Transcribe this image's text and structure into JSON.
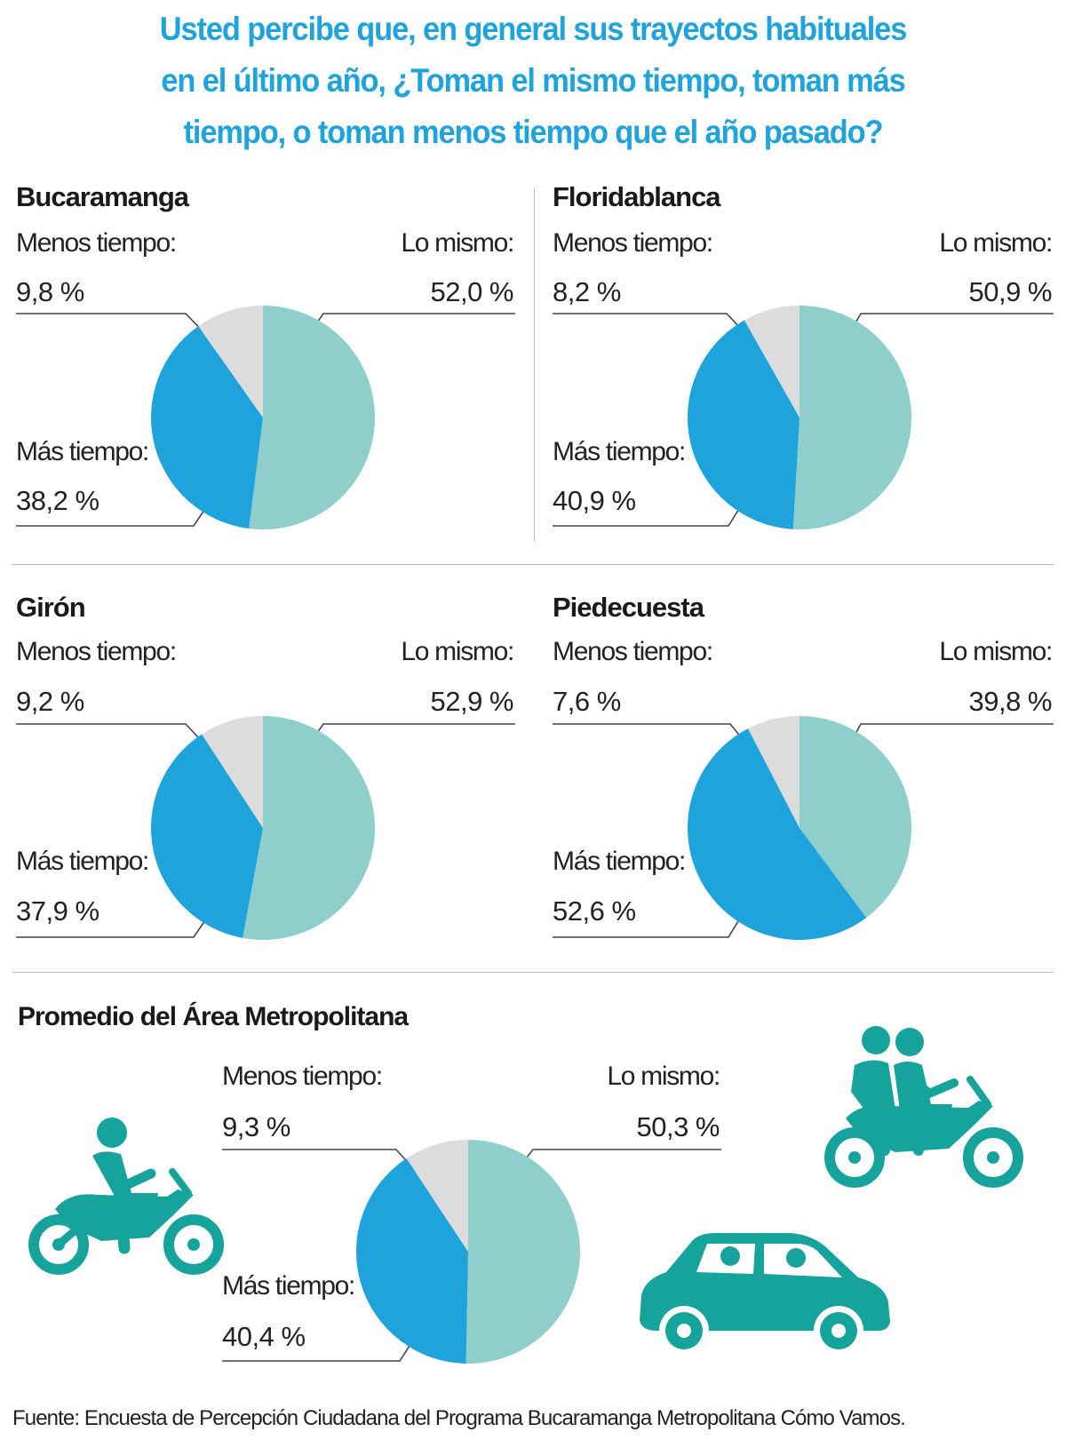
{
  "title_lines": [
    "Usted percibe que, en general sus trayectos habituales",
    "en el último año, ¿Toman el mismo tiempo, toman más",
    "tiempo, o toman menos tiempo que el año pasado?"
  ],
  "colors": {
    "lo_mismo": "#8ecfcb",
    "mas_tiempo": "#1fa3dd",
    "menos_tiempo": "#dcdcdc",
    "title": "#1fa3dd",
    "icons": "#16a39c"
  },
  "chart_data": [
    {
      "type": "pie",
      "title": "Bucaramanga",
      "slices": [
        {
          "label": "Lo mismo:",
          "value": 52.0,
          "display": "52,0 %"
        },
        {
          "label": "Más tiempo:",
          "value": 38.2,
          "display": "38,2 %"
        },
        {
          "label": "Menos tiempo:",
          "value": 9.8,
          "display": "9,8 %"
        }
      ]
    },
    {
      "type": "pie",
      "title": "Floridablanca",
      "slices": [
        {
          "label": "Lo mismo:",
          "value": 50.9,
          "display": "50,9 %"
        },
        {
          "label": "Más tiempo:",
          "value": 40.9,
          "display": "40,9 %"
        },
        {
          "label": "Menos tiempo:",
          "value": 8.2,
          "display": "8,2 %"
        }
      ]
    },
    {
      "type": "pie",
      "title": "Girón",
      "slices": [
        {
          "label": "Lo mismo:",
          "value": 52.9,
          "display": "52,9 %"
        },
        {
          "label": "Más tiempo:",
          "value": 37.9,
          "display": "37,9 %"
        },
        {
          "label": "Menos tiempo:",
          "value": 9.2,
          "display": "9,2 %"
        }
      ]
    },
    {
      "type": "pie",
      "title": "Piedecuesta",
      "slices": [
        {
          "label": "Lo mismo:",
          "value": 39.8,
          "display": "39,8 %"
        },
        {
          "label": "Más tiempo:",
          "value": 52.6,
          "display": "52,6 %"
        },
        {
          "label": "Menos tiempo:",
          "value": 7.6,
          "display": "7,6 %"
        }
      ]
    },
    {
      "type": "pie",
      "title": "Promedio del Área Metropolitana",
      "slices": [
        {
          "label": "Lo mismo:",
          "value": 50.3,
          "display": "50,3 %"
        },
        {
          "label": "Más tiempo:",
          "value": 40.4,
          "display": "40,4 %"
        },
        {
          "label": "Menos tiempo:",
          "value": 9.3,
          "display": "9,3 %"
        }
      ]
    }
  ],
  "icons": [
    "motorcycle-rider-icon",
    "motorcycle-two-riders-icon",
    "car-icon"
  ],
  "source": "Fuente: Encuesta de Percepción Ciudadana del Programa Bucaramanga Metropolitana Cómo Vamos."
}
